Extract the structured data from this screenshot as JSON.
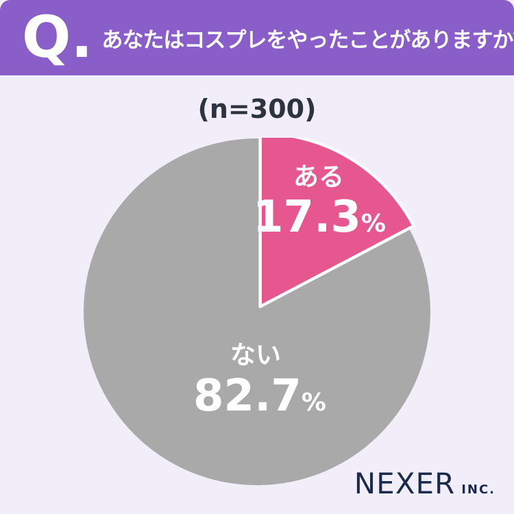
{
  "page": {
    "background_color": "#F1EEFA"
  },
  "header": {
    "background_color": "#8A5EC8",
    "q_mark": "Q.",
    "question": "あなたはコスプレをやったことがありますか？"
  },
  "survey": {
    "sample_size_label": "(n=300)"
  },
  "chart_data": {
    "type": "pie",
    "title": "あなたはコスプレをやったことがありますか？",
    "sample_size": 300,
    "start_angle_deg": 0,
    "direction": "clockwise",
    "legend_position": "inside",
    "separator_color": "#FFFFFF",
    "slices": [
      {
        "label": "ある",
        "value": 17.3,
        "unit": "%",
        "color": "#E7578F",
        "exploded": true
      },
      {
        "label": "ない",
        "value": 82.7,
        "unit": "%",
        "color": "#A9A9A9",
        "exploded": false
      }
    ]
  },
  "footer": {
    "brand": "NEXER",
    "brand_suffix": "INC."
  }
}
